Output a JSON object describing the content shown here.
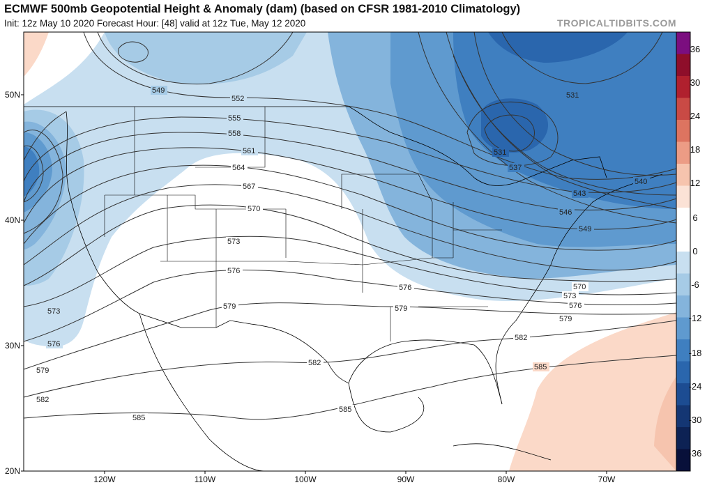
{
  "header": {
    "title": "ECMWF 500mb Geopotential Height & Anomaly (dam) (based on CFSR 1981-2010 Climatology)",
    "subtitle": "Init: 12z May 10 2020   Forecast Hour: [48]   valid at 12z Tue, May 12 2020",
    "brand": "TROPICALTIDBITS.COM"
  },
  "map": {
    "lat_range": [
      20,
      55
    ],
    "lon_range": [
      -128,
      -63
    ],
    "lat_labels": [
      "50N",
      "40N",
      "30N",
      "20N"
    ],
    "lon_labels": [
      "120W",
      "110W",
      "100W",
      "90W",
      "80W",
      "70W"
    ]
  },
  "contours": [
    {
      "value": 531,
      "labels": [
        "531",
        "531"
      ]
    },
    {
      "value": 537,
      "labels": [
        "537"
      ]
    },
    {
      "value": 540,
      "labels": [
        "540"
      ]
    },
    {
      "value": 543,
      "labels": [
        "543"
      ]
    },
    {
      "value": 546,
      "labels": [
        "546"
      ]
    },
    {
      "value": 549,
      "labels": [
        "549",
        "549"
      ]
    },
    {
      "value": 552,
      "labels": [
        "552"
      ]
    },
    {
      "value": 555,
      "labels": [
        "555"
      ]
    },
    {
      "value": 558,
      "labels": [
        "558"
      ]
    },
    {
      "value": 561,
      "labels": [
        "561"
      ]
    },
    {
      "value": 564,
      "labels": [
        "564"
      ]
    },
    {
      "value": 567,
      "labels": [
        "567"
      ]
    },
    {
      "value": 570,
      "labels": [
        "570",
        "570"
      ]
    },
    {
      "value": 573,
      "labels": [
        "573",
        "573",
        "573"
      ]
    },
    {
      "value": 576,
      "labels": [
        "576",
        "576",
        "576",
        "576"
      ]
    },
    {
      "value": 579,
      "labels": [
        "579",
        "579",
        "579",
        "579"
      ]
    },
    {
      "value": 582,
      "labels": [
        "582",
        "582",
        "582"
      ]
    },
    {
      "value": 585,
      "labels": [
        "585",
        "585",
        "585"
      ]
    }
  ],
  "colorbar": {
    "labels": [
      "36",
      "30",
      "24",
      "18",
      "12",
      "6",
      "0",
      "-6",
      "-12",
      "-18",
      "-24",
      "-30",
      "-36"
    ],
    "colors": [
      "#7b0e7f",
      "#8e0e2a",
      "#b0202e",
      "#c94a45",
      "#dd7460",
      "#ec9c85",
      "#f6c4ae",
      "#fbe2d6",
      "#ffffff",
      "#ffffff",
      "#c8dff0",
      "#a6cbe6",
      "#84b4dc",
      "#5f9acf",
      "#3f7fc0",
      "#2a66ad",
      "#1c4c92",
      "#143673",
      "#0d2254",
      "#08103a"
    ]
  },
  "anomaly_colors": {
    "light_blue": "#c8dff0",
    "mid_blue": "#84b4dc",
    "blue": "#5f9acf",
    "deep_blue": "#3f7fc0",
    "dark_blue": "#2a66ad",
    "pink": "#fbd9c8",
    "salmon": "#f6c4ae"
  }
}
